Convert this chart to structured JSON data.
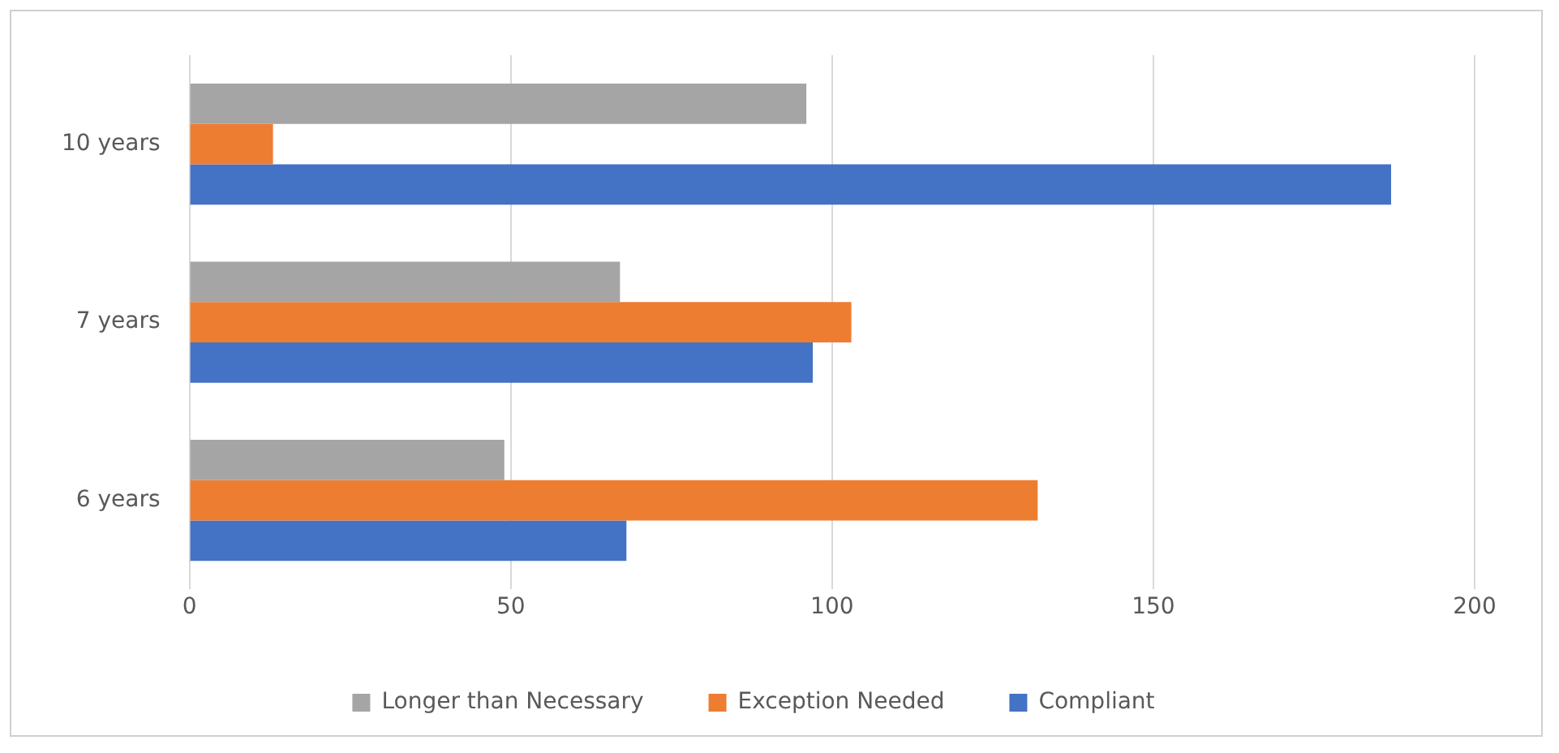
{
  "chart_data": {
    "type": "bar",
    "orientation": "horizontal",
    "categories": [
      "10 years",
      "7 years",
      "6 years"
    ],
    "series": [
      {
        "name": "Longer than Necessary",
        "color": "#a5a5a5",
        "values": [
          96,
          67,
          49
        ]
      },
      {
        "name": "Exception Needed",
        "color": "#ed7d31",
        "values": [
          13,
          103,
          132
        ]
      },
      {
        "name": "Compliant",
        "color": "#4472c4",
        "values": [
          187,
          97,
          68
        ]
      }
    ],
    "xlim": [
      0,
      200
    ],
    "xticks": [
      0,
      50,
      100,
      150,
      200
    ],
    "grid": "x",
    "legend": "bottom"
  }
}
